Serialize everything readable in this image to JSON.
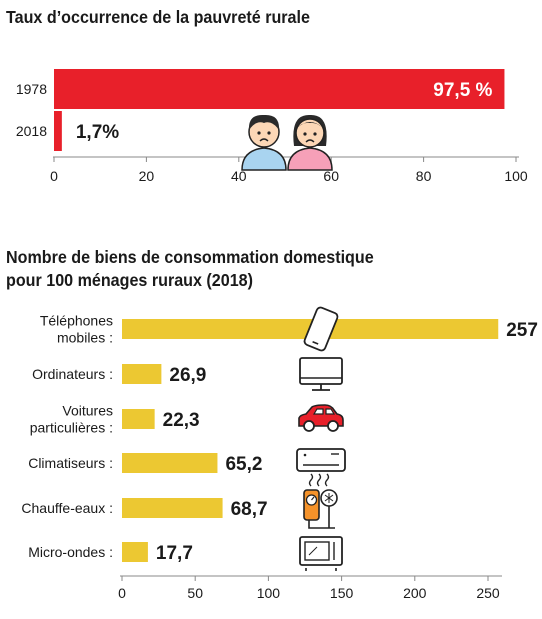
{
  "accent_red": "#e8202a",
  "accent_yellow": "#ecc832",
  "chart_data": [
    {
      "type": "bar",
      "orientation": "horizontal",
      "title": "Taux d’occurrence de la pauvreté rurale",
      "categories": [
        "1978",
        "2018"
      ],
      "values": [
        97.5,
        1.7
      ],
      "value_labels": [
        "97,5 %",
        "1,7%"
      ],
      "xlim": [
        0,
        100
      ],
      "x_ticks": [
        "0",
        "20",
        "40",
        "60",
        "80",
        "100"
      ],
      "bar_color": "#e8202a",
      "icon": "sad-couple-icon"
    },
    {
      "type": "bar",
      "orientation": "horizontal",
      "title_lines": [
        "Nombre de biens de consommation domestique",
        "pour 100 ménages ruraux (2018)"
      ],
      "categories": [
        {
          "label_lines": [
            "Téléphones",
            "mobiles :"
          ],
          "icon": "mobile-phone-icon"
        },
        {
          "label_lines": [
            "Ordinateurs :"
          ],
          "icon": "computer-icon"
        },
        {
          "label_lines": [
            "Voitures",
            "particulières :"
          ],
          "icon": "car-icon"
        },
        {
          "label_lines": [
            "Climatiseurs :"
          ],
          "icon": "air-conditioner-icon"
        },
        {
          "label_lines": [
            "Chauffe-eaux :"
          ],
          "icon": "water-heater-icon"
        },
        {
          "label_lines": [
            "Micro-ondes :"
          ],
          "icon": "microwave-icon"
        }
      ],
      "values": [
        257,
        26.9,
        22.3,
        65.2,
        68.7,
        17.7
      ],
      "value_labels": [
        "257",
        "26,9",
        "22,3",
        "65,2",
        "68,7",
        "17,7"
      ],
      "xlim": [
        0,
        250
      ],
      "x_ticks": [
        "0",
        "50",
        "100",
        "150",
        "200",
        "250"
      ],
      "bar_color": "#ecc832"
    }
  ]
}
